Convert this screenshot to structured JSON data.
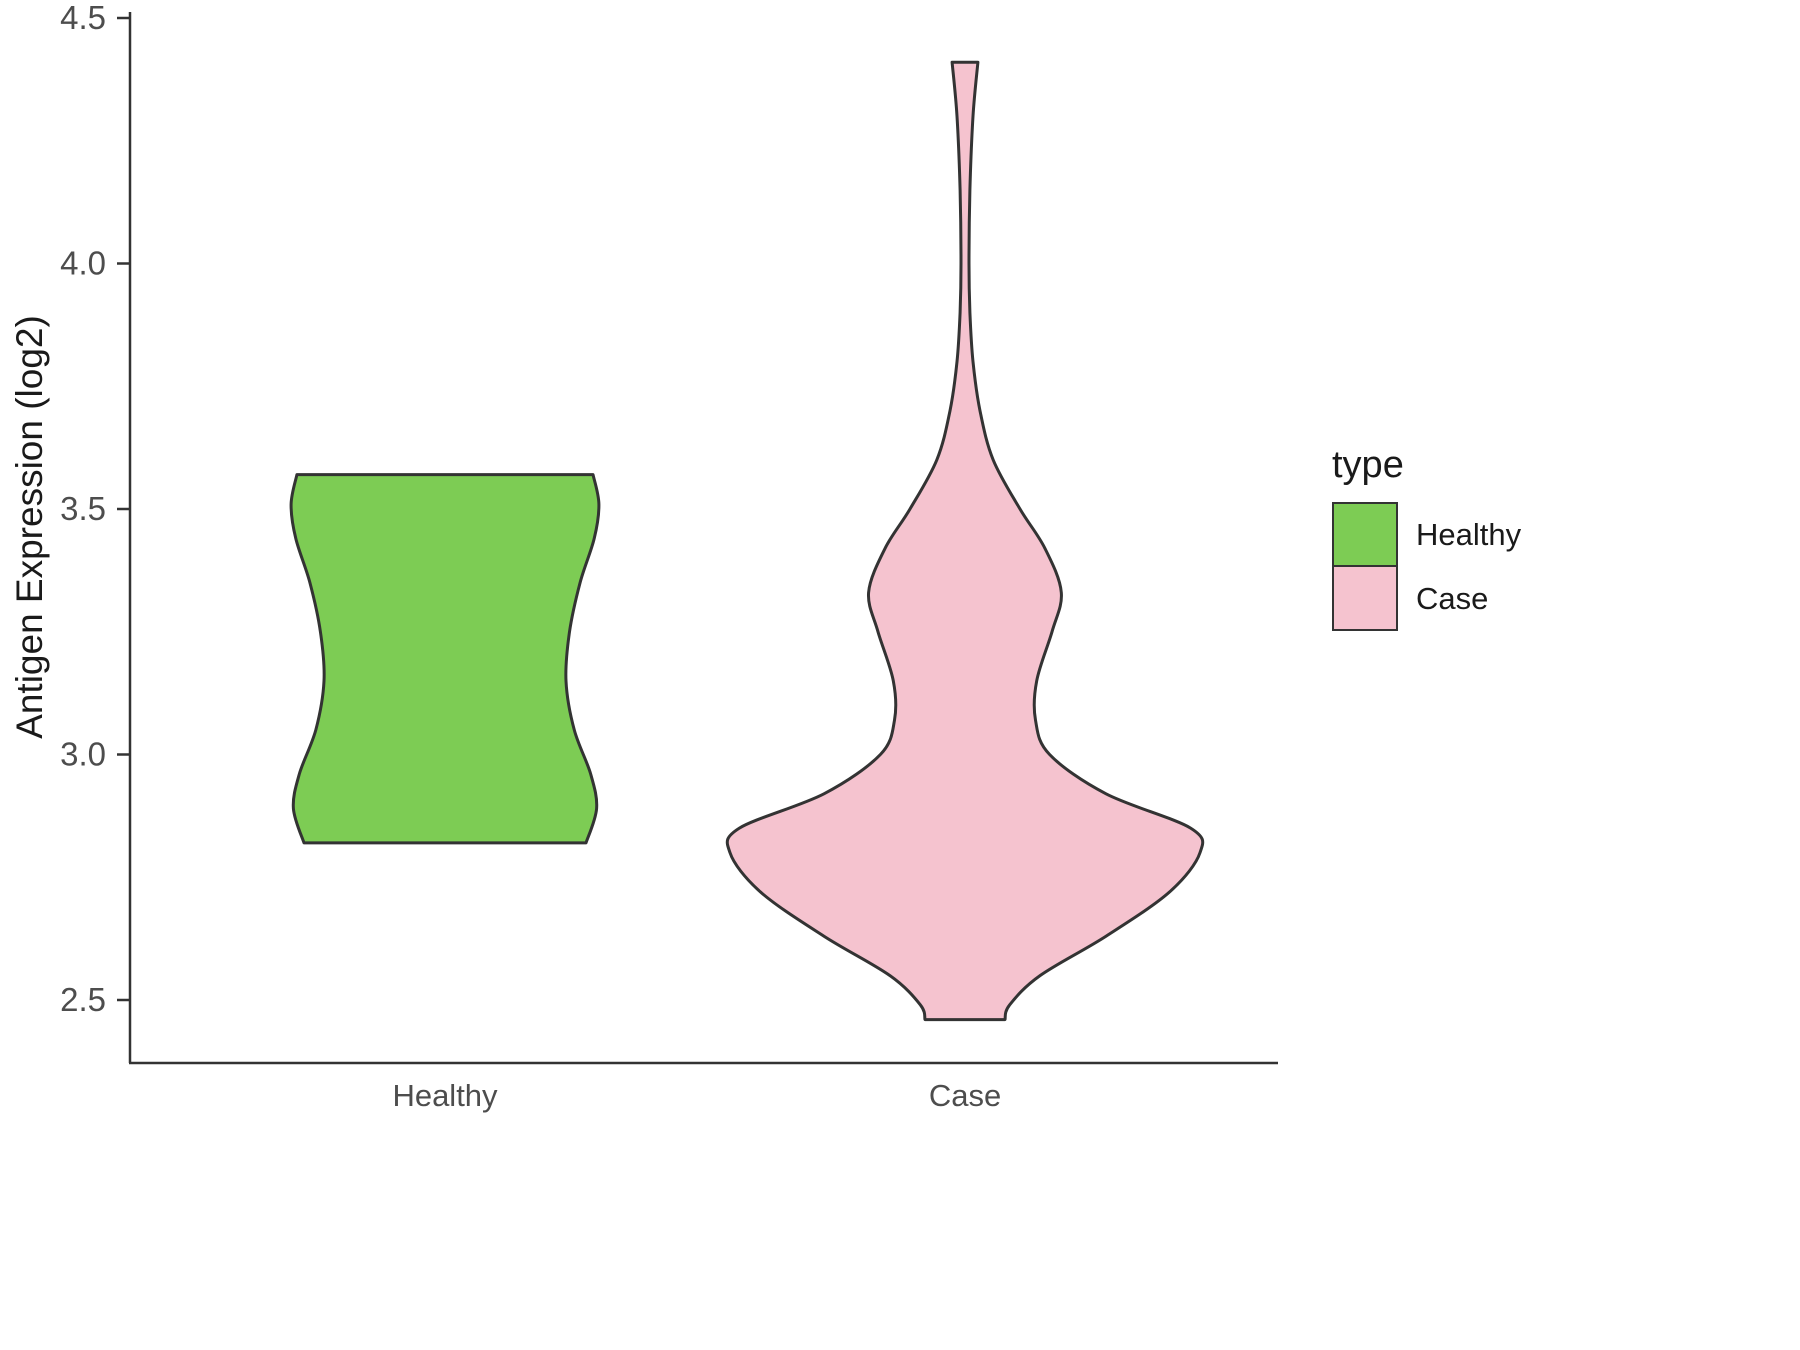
{
  "chart_data": {
    "type": "violin",
    "title": "",
    "xlabel": "",
    "ylabel": "Antigen Expression (log2)",
    "ylim": [
      2.3,
      4.5
    ],
    "yticks": [
      2.5,
      3.0,
      3.5,
      4.0,
      4.5
    ],
    "categories": [
      "Healthy",
      "Case"
    ],
    "grid": false,
    "legend": {
      "title": "type",
      "position": "right",
      "entries": [
        {
          "label": "Healthy",
          "color": "#7dcc54"
        },
        {
          "label": "Case",
          "color": "#f5c3cf"
        }
      ]
    },
    "outline_color": "#333333",
    "series": [
      {
        "name": "Healthy",
        "color": "#7dcc54",
        "profile": [
          [
            3.57,
            0.63
          ],
          [
            3.51,
            0.655
          ],
          [
            3.44,
            0.635
          ],
          [
            3.35,
            0.575
          ],
          [
            3.25,
            0.53
          ],
          [
            3.15,
            0.515
          ],
          [
            3.05,
            0.55
          ],
          [
            2.96,
            0.62
          ],
          [
            2.89,
            0.645
          ],
          [
            2.82,
            0.6
          ]
        ]
      },
      {
        "name": "Case",
        "color": "#f5c3cf",
        "profile": [
          [
            4.41,
            0.055
          ],
          [
            4.3,
            0.034
          ],
          [
            4.15,
            0.021
          ],
          [
            4.0,
            0.017
          ],
          [
            3.9,
            0.021
          ],
          [
            3.8,
            0.034
          ],
          [
            3.7,
            0.064
          ],
          [
            3.6,
            0.12
          ],
          [
            3.5,
            0.234
          ],
          [
            3.42,
            0.34
          ],
          [
            3.33,
            0.41
          ],
          [
            3.25,
            0.37
          ],
          [
            3.15,
            0.305
          ],
          [
            3.07,
            0.3
          ],
          [
            3.0,
            0.36
          ],
          [
            2.92,
            0.6
          ],
          [
            2.85,
            0.96
          ],
          [
            2.8,
            1.0
          ],
          [
            2.72,
            0.87
          ],
          [
            2.63,
            0.6
          ],
          [
            2.55,
            0.32
          ],
          [
            2.49,
            0.19
          ],
          [
            2.46,
            0.17
          ]
        ]
      }
    ]
  }
}
